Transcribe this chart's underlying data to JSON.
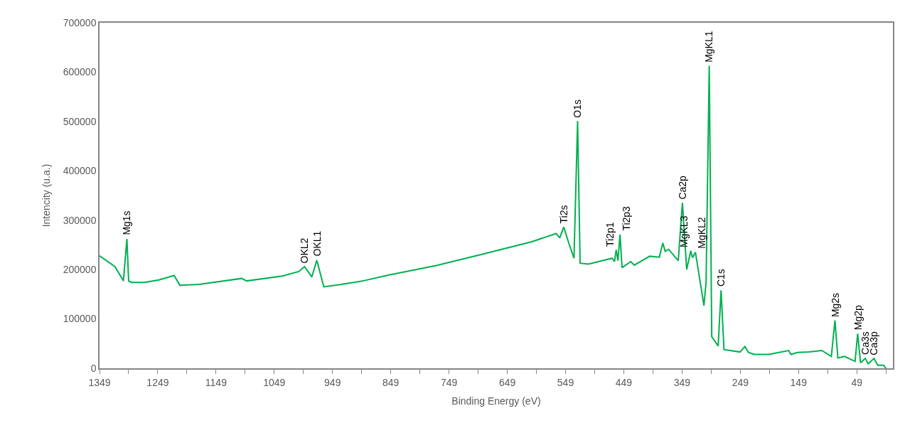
{
  "chart_data": {
    "type": "line",
    "xlabel": "Binding Energy (eV)",
    "ylabel": "Intencity (u.a.)",
    "x": [
      1349,
      1322.5,
      1308,
      1302,
      1299,
      1294,
      1272,
      1247,
      1221,
      1211,
      1178,
      1105,
      1096.5,
      1035,
      1007,
      997,
      984.5,
      976,
      964,
      933.6,
      897,
      852,
      771,
      689,
      608,
      565,
      559,
      552,
      543,
      534.5,
      528.3,
      524,
      510,
      469,
      465,
      462,
      459,
      455.5,
      452,
      437,
      431,
      404.5,
      388,
      382,
      378,
      372,
      355.5,
      348.4,
      341,
      334,
      331,
      326,
      311.4,
      307.7,
      302.3,
      298,
      292,
      287,
      282,
      277,
      249.5,
      241,
      235,
      225,
      200,
      166,
      162,
      151,
      131,
      109,
      92.7,
      86.5,
      81.5,
      70,
      52,
      47.5,
      42.6,
      34.4,
      29.5,
      19.5,
      13,
      3,
      -1
    ],
    "series": [
      {
        "color": "#00b050",
        "values": [
          228000,
          206000,
          177000,
          262000,
          177000,
          174000,
          174000,
          179000,
          188000,
          168000,
          170000,
          182000,
          177000,
          187000,
          196000,
          206000,
          185000,
          219000,
          165000,
          170000,
          177000,
          189000,
          208000,
          232000,
          256000,
          273000,
          264000,
          286000,
          252000,
          223000,
          501000,
          213000,
          211000,
          223000,
          216000,
          240000,
          218000,
          271000,
          204000,
          216000,
          209000,
          227000,
          225000,
          254000,
          237000,
          241000,
          218000,
          335000,
          200000,
          238000,
          224000,
          235000,
          127000,
          175000,
          613000,
          64000,
          54000,
          45000,
          158000,
          38000,
          33000,
          44000,
          32000,
          28000,
          28000,
          36000,
          28000,
          32000,
          33000,
          36000,
          24000,
          97000,
          21000,
          24000,
          14000,
          70000,
          11000,
          20000,
          9000,
          20000,
          6000,
          6000,
          0
        ]
      }
    ],
    "xlim": [
      1349,
      -13
    ],
    "xticks": [
      1349,
      {
        "value": 1299,
        "label": null
      },
      1249,
      {
        "value": 1199,
        "label": null
      },
      1149,
      {
        "value": 1099,
        "label": null
      },
      1049,
      {
        "value": 999,
        "label": null
      },
      949,
      {
        "value": 899,
        "label": null
      },
      849,
      {
        "value": 799,
        "label": null
      },
      749,
      {
        "value": 699,
        "label": null
      },
      649,
      {
        "value": 599,
        "label": null
      },
      549,
      {
        "value": 499,
        "label": null
      },
      449,
      {
        "value": 399,
        "label": null
      },
      349,
      {
        "value": 299,
        "label": null
      },
      249,
      {
        "value": 199,
        "label": null
      },
      149,
      {
        "value": 99,
        "label": null
      },
      49,
      {
        "value": -1,
        "label": null
      }
    ],
    "ylim": [
      0,
      700000
    ],
    "yticks": [
      0,
      100000,
      200000,
      300000,
      400000,
      500000,
      600000,
      700000
    ],
    "marker": "none",
    "line_style": "solid",
    "annotations": [
      {
        "text": "Mg1s",
        "x": 1302,
        "y": 262000
      },
      {
        "text": "OKL2",
        "x": 997,
        "y": 206000
      },
      {
        "text": "OKL1",
        "x": 976,
        "y": 219000
      },
      {
        "text": "Ti2s",
        "x": 552,
        "y": 286000
      },
      {
        "text": "O1s",
        "x": 528.3,
        "y": 501000
      },
      {
        "text": "Ti2p1",
        "x": 462,
        "y": 239500
      },
      {
        "text": "Ti2p3",
        "x": 455.5,
        "y": 270800
      },
      {
        "text": "Ca2p",
        "x": 348.4,
        "y": 334600
      },
      {
        "text": "MgKL3",
        "x": 334,
        "y": 238000
      },
      {
        "text": "MgKL2",
        "x": 326,
        "y": 234800
      },
      {
        "text": "MgKL1",
        "x": 302.3,
        "y": 612600
      },
      {
        "text": "C1s",
        "x": 282,
        "y": 158000
      },
      {
        "text": "Mg2s",
        "x": 86.5,
        "y": 97000
      },
      {
        "text": "Mg2p",
        "x": 47.5,
        "y": 70100
      },
      {
        "text": "Ca3s",
        "x": 34.4,
        "y": 19700
      },
      {
        "text": "Ca3p",
        "x": 19.5,
        "y": 19700
      }
    ]
  }
}
